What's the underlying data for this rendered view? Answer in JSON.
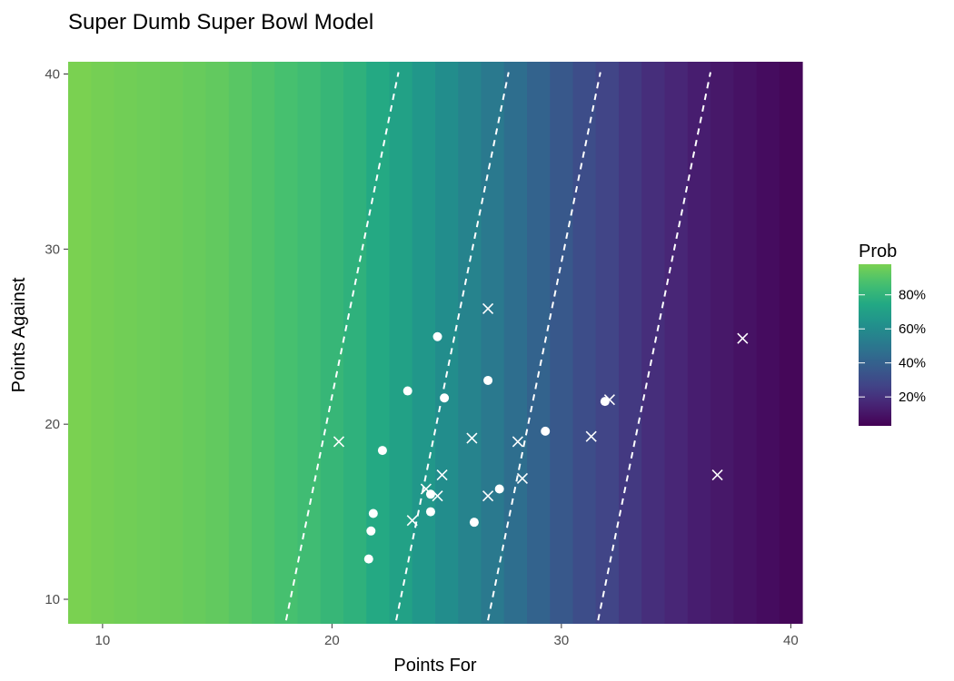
{
  "chart_data": {
    "type": "heatmap",
    "title": "Super Dumb Super Bowl Model",
    "xlabel": "Points For",
    "ylabel": "Points Against",
    "xlim": [
      8.5,
      40.5
    ],
    "ylim": [
      8.6,
      40.7
    ],
    "x_ticks": [
      10,
      20,
      30,
      40
    ],
    "y_ticks": [
      10,
      20,
      30,
      40
    ],
    "grid": false,
    "heatmap": {
      "x_centers": [
        9,
        10,
        11,
        12,
        13,
        14,
        15,
        16,
        17,
        18,
        19,
        20,
        21,
        22,
        23,
        24,
        25,
        26,
        27,
        28,
        29,
        30,
        31,
        32,
        33,
        34,
        35,
        36,
        37,
        38,
        39,
        40
      ],
      "prob": [
        0.98,
        0.97,
        0.96,
        0.955,
        0.95,
        0.94,
        0.93,
        0.91,
        0.89,
        0.87,
        0.85,
        0.82,
        0.79,
        0.75,
        0.71,
        0.66,
        0.61,
        0.56,
        0.51,
        0.46,
        0.41,
        0.36,
        0.31,
        0.27,
        0.23,
        0.19,
        0.16,
        0.13,
        0.11,
        0.09,
        0.07,
        0.05
      ]
    },
    "contours": [
      {
        "x": [
          18.0,
          22.9
        ],
        "y": [
          8.8,
          40.1
        ]
      },
      {
        "x": [
          22.8,
          27.7
        ],
        "y": [
          8.8,
          40.1
        ]
      },
      {
        "x": [
          26.8,
          31.7
        ],
        "y": [
          8.8,
          40.1
        ]
      },
      {
        "x": [
          31.6,
          36.5
        ],
        "y": [
          8.8,
          40.1
        ]
      }
    ],
    "series": [
      {
        "shape": "circle",
        "points": [
          [
            24.6,
            25.0
          ],
          [
            23.3,
            21.9
          ],
          [
            24.9,
            21.5
          ],
          [
            26.8,
            22.5
          ],
          [
            22.2,
            18.5
          ],
          [
            29.3,
            19.6
          ],
          [
            31.9,
            21.3
          ],
          [
            24.3,
            16.0
          ],
          [
            27.3,
            16.3
          ],
          [
            24.3,
            15.0
          ],
          [
            21.8,
            14.9
          ],
          [
            21.7,
            13.9
          ],
          [
            26.2,
            14.4
          ],
          [
            21.6,
            12.3
          ]
        ]
      },
      {
        "shape": "x",
        "points": [
          [
            26.8,
            26.6
          ],
          [
            37.9,
            24.9
          ],
          [
            20.3,
            19.0
          ],
          [
            26.1,
            19.2
          ],
          [
            28.1,
            19.0
          ],
          [
            31.3,
            19.3
          ],
          [
            32.1,
            21.4
          ],
          [
            24.8,
            17.1
          ],
          [
            36.8,
            17.1
          ],
          [
            28.3,
            16.9
          ],
          [
            24.1,
            16.3
          ],
          [
            24.6,
            15.9
          ],
          [
            26.8,
            15.9
          ],
          [
            23.5,
            14.5
          ]
        ]
      }
    ],
    "legend": {
      "title": "Prob",
      "placement": "right",
      "min": 0.03,
      "max": 0.98,
      "ticks": [
        {
          "value": 0.8,
          "label": "80%"
        },
        {
          "value": 0.6,
          "label": "60%"
        },
        {
          "value": 0.4,
          "label": "40%"
        },
        {
          "value": 0.2,
          "label": "20%"
        }
      ]
    }
  }
}
